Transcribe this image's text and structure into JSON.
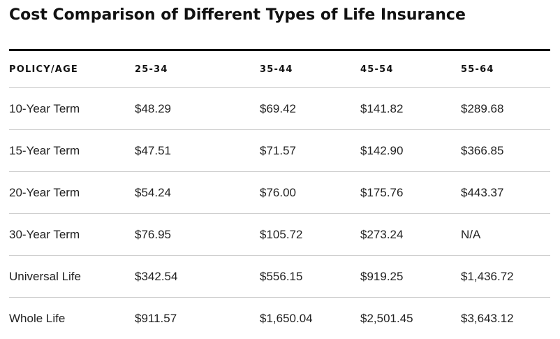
{
  "title": "Cost Comparison of Different Types of Life Insurance",
  "table": {
    "headers": [
      "POLICY/AGE",
      "25-34",
      "35-44",
      "45-54",
      "55-64"
    ],
    "rows": [
      [
        "10-Year Term",
        "$48.29",
        "$69.42",
        "$141.82",
        "$289.68"
      ],
      [
        "15-Year Term",
        "$47.51",
        "$71.57",
        "$142.90",
        "$366.85"
      ],
      [
        "20-Year Term",
        "$54.24",
        "$76.00",
        "$175.76",
        "$443.37"
      ],
      [
        "30-Year Term",
        "$76.95",
        "$105.72",
        "$273.24",
        "N/A"
      ],
      [
        "Universal Life",
        "$342.54",
        "$556.15",
        "$919.25",
        "$1,436.72"
      ],
      [
        "Whole Life",
        "$911.57",
        "$1,650.04",
        "$2,501.45",
        "$3,643.12"
      ]
    ]
  }
}
